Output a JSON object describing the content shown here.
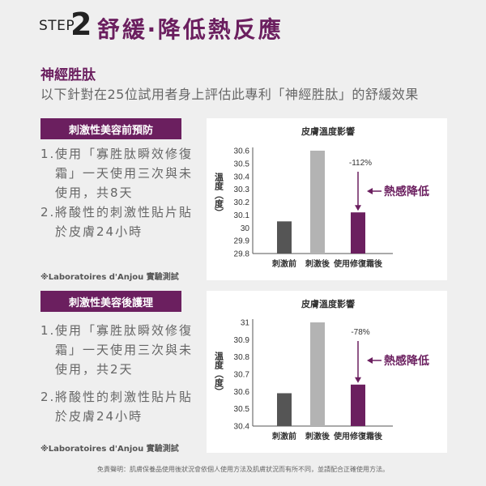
{
  "header": {
    "step_word": "STEP",
    "step_num": "2",
    "title": "舒緩‧降低熱反應"
  },
  "section": {
    "title": "神經胜肽",
    "desc": "以下針對在25位試用者身上評估此專利「神經胜肽」的舒緩效果"
  },
  "panels": [
    {
      "label": "刺激性美容前預防",
      "steps": [
        {
          "num": "1.",
          "text": "使用「寡胜肽瞬效修復霜」一天使用三次與未使用，共8天"
        },
        {
          "num": "2.",
          "text": "將酸性的刺激性貼片貼於皮膚24小時"
        }
      ],
      "note": "※Laboratoires d'Anjou 實驗測試"
    },
    {
      "label": "刺激性美容後護理",
      "steps": [
        {
          "num": "1.",
          "text": "使用「寡胜肽瞬效修復霜」一天使用三次與未使用，共2天"
        },
        {
          "num": "2.",
          "text": "將酸性的刺激性貼片貼於皮膚24小時"
        }
      ],
      "note": "※Laboratoires d'Anjou 實驗測試"
    }
  ],
  "chart_data": [
    {
      "type": "bar",
      "title": "皮膚溫度影響",
      "ylabel": "溫度（度）",
      "categories": [
        "刺激前",
        "刺激後",
        "使用修復霜後"
      ],
      "values": [
        30.05,
        30.6,
        30.12
      ],
      "colors": [
        "#555555",
        "#b3b3b3",
        "#6b1f5f"
      ],
      "ylim": [
        29.8,
        30.6
      ],
      "yticks": [
        "30.6",
        "30.5",
        "30.4",
        "30.3",
        "30.2",
        "30.1",
        "30",
        "29.9",
        "29.8"
      ],
      "annotation": {
        "percent": "-112%",
        "label": "熱感降低"
      }
    },
    {
      "type": "bar",
      "title": "皮膚溫度影響",
      "ylabel": "溫度（度）",
      "categories": [
        "刺激前",
        "刺激後",
        "使用修復霜後"
      ],
      "values": [
        30.59,
        31.0,
        30.64
      ],
      "colors": [
        "#555555",
        "#b3b3b3",
        "#6b1f5f"
      ],
      "ylim": [
        30.4,
        31.0
      ],
      "yticks": [
        "31",
        "30.9",
        "30.8",
        "30.7",
        "30.6",
        "30.5",
        "30.4"
      ],
      "annotation": {
        "percent": "-78%",
        "label": "熱感降低"
      }
    }
  ],
  "disclaimer": "免責聲明：肌膚保養品使用後狀況會依個人使用方法及肌膚狀況而有所不同，並請配合正確使用方法。"
}
